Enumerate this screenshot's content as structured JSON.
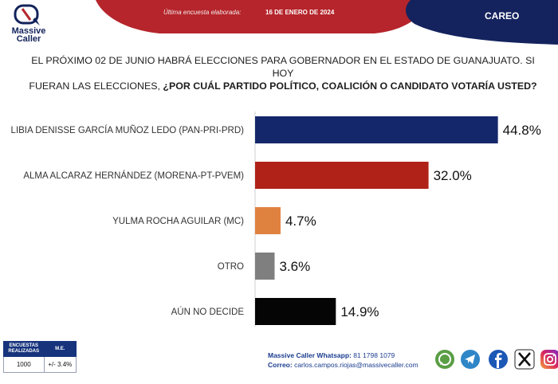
{
  "header": {
    "brand_line1": "Massive",
    "brand_line2": "Caller",
    "survey_label": "Última encuesta elaborada:",
    "survey_date": "16 DE ENERO DE 2024",
    "careo": "CAREO"
  },
  "question": {
    "line1": "EL PRÓXIMO 02 DE JUNIO HABRÁ ELECCIONES PARA GOBERNADOR EN EL ESTADO DE GUANAJUATO. SI HOY",
    "line2_plain": "FUERAN LAS ELECCIONES, ",
    "line2_bold": "¿POR CUÁL PARTIDO POLÍTICO, COALICIÓN O CANDIDATO VOTARÍA USTED?"
  },
  "chart_data": {
    "type": "bar",
    "orientation": "horizontal",
    "categories": [
      "LIBIA DENISSE GARCÍA MUÑOZ LEDO (PAN-PRI-PRD)",
      "ALMA ALCARAZ HERNÁNDEZ (MORENA-PT-PVEM)",
      "YULMA ROCHA AGUILAR (MC)",
      "OTRO",
      "AÚN NO DECIDE"
    ],
    "values": [
      44.8,
      32.0,
      4.7,
      3.6,
      14.9
    ],
    "value_labels": [
      "44.8%",
      "32.0%",
      "4.7%",
      "3.6%",
      "14.9%"
    ],
    "colors": [
      "#15276b",
      "#b02218",
      "#e0823f",
      "#7f7f7f",
      "#050505"
    ],
    "xlim": [
      0,
      50
    ],
    "grid": false,
    "legend": "none"
  },
  "footer": {
    "col1_header_line1": "ENCUESTAS",
    "col1_header_line2": "REALIZADAS",
    "col2_header": "M.E.",
    "col1_value": "1000",
    "col2_value": "+/- 3.4%",
    "whatsapp_label": "Massive Caller Whatsapp:",
    "whatsapp_value": "81 1798 1079",
    "email_label": "Correo:",
    "email_value": "carlos.campos.riojas@massivecaller.com"
  },
  "social_icons": [
    "whatsapp-icon",
    "telegram-icon",
    "facebook-icon",
    "x-icon",
    "instagram-icon"
  ],
  "colors": {
    "header_red": "#b5252b",
    "header_navy": "#14235e",
    "text_blue": "#1a3c8f"
  }
}
